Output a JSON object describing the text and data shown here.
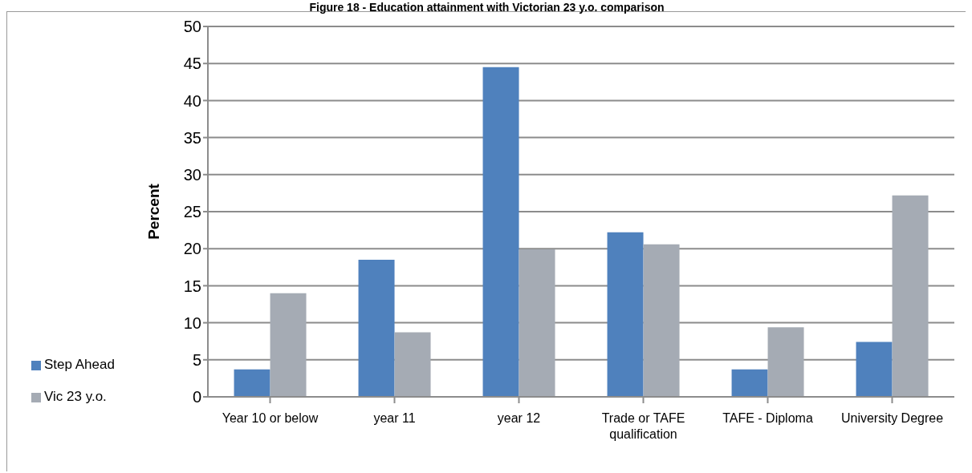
{
  "chart_data": {
    "type": "bar",
    "title": "Figure 18 - Education attainment with Victorian 23 y.o. comparison",
    "ylabel": "Percent",
    "categories": [
      "Year 10 or below",
      "year 11",
      "year 12",
      "Trade or TAFE qualification",
      "TAFE - Diploma",
      "University Degree"
    ],
    "series": [
      {
        "name": "Step Ahead",
        "color": "#4f81bd",
        "values": [
          3.7,
          18.5,
          44.5,
          22.2,
          3.7,
          7.4
        ]
      },
      {
        "name": "Vic 23 y.o.",
        "color": "#a5abb4",
        "values": [
          14.0,
          8.7,
          19.9,
          20.6,
          9.4,
          27.2
        ]
      }
    ],
    "ylim": [
      0,
      50
    ],
    "yticks": [
      0,
      5,
      10,
      15,
      20,
      25,
      30,
      35,
      40,
      45,
      50
    ],
    "grid": "y",
    "legend": "left"
  }
}
